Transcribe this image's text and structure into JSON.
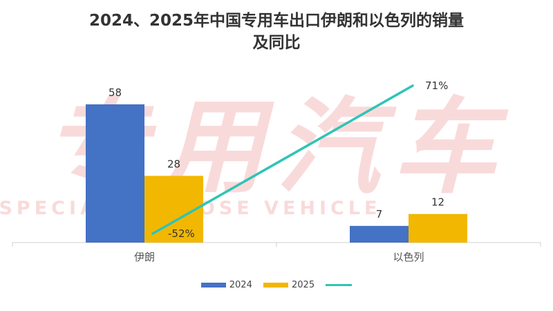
{
  "chart_data": {
    "type": "bar",
    "title_lines": [
      "2024、2025年中国专用车出口伊朗和以色列的销量",
      "及同比"
    ],
    "categories": [
      "伊朗",
      "以色列"
    ],
    "series": [
      {
        "name": "2024",
        "values": [
          58,
          7
        ],
        "color": "#4472C4"
      },
      {
        "name": "2025",
        "values": [
          28,
          12
        ],
        "color": "#F2B700"
      }
    ],
    "growth": {
      "type": "line",
      "values": [
        "-52%",
        "71%"
      ],
      "color": "#2EC4B6"
    },
    "grid": false,
    "legend_position": "bottom"
  },
  "watermark": {
    "text": "专用汽车",
    "subtext": "SPECIAL PURPOSE VEHICLE"
  }
}
